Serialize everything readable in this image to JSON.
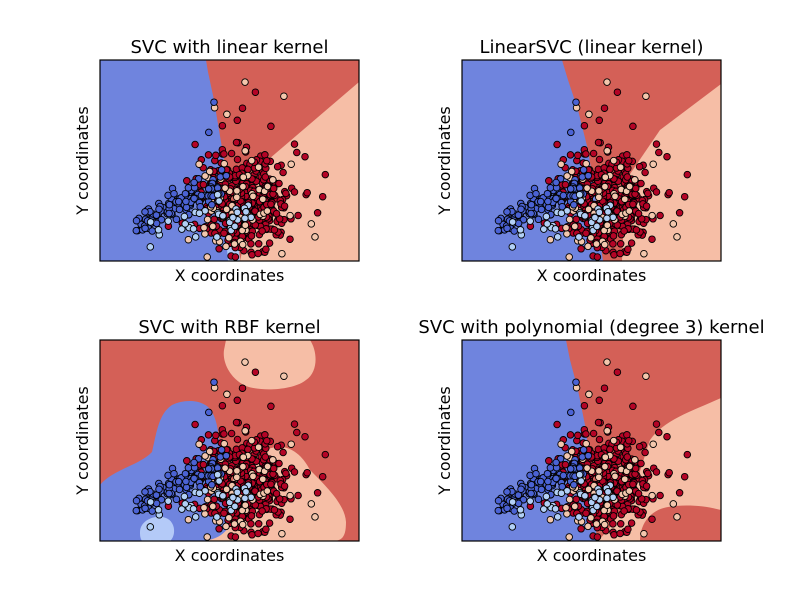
{
  "colors": {
    "region_blue": "#6f84de",
    "region_lightblue": "#b4caf8",
    "region_salmon": "#f6bea6",
    "region_red": "#d46057",
    "point_blue": "#4b63d4",
    "point_lightblue": "#b2d0f6",
    "point_cream": "#f3c7ad",
    "point_red": "#b40426",
    "point_edge": "#000000"
  },
  "chart_data": [
    {
      "type": "scatter",
      "title": "SVC with linear kernel",
      "xlabel": "X coordinates",
      "ylabel": "Y coordinates",
      "ticks": false
    },
    {
      "type": "scatter",
      "title": "LinearSVC (linear kernel)",
      "xlabel": "X coordinates",
      "ylabel": "Y coordinates",
      "ticks": false
    },
    {
      "type": "scatter",
      "title": "SVC with RBF kernel",
      "xlabel": "X coordinates",
      "ylabel": "Y coordinates",
      "ticks": false
    },
    {
      "type": "scatter",
      "title": "SVC with polynomial (degree 3) kernel",
      "xlabel": "X coordinates",
      "ylabel": "Y coordinates",
      "ticks": false
    }
  ]
}
